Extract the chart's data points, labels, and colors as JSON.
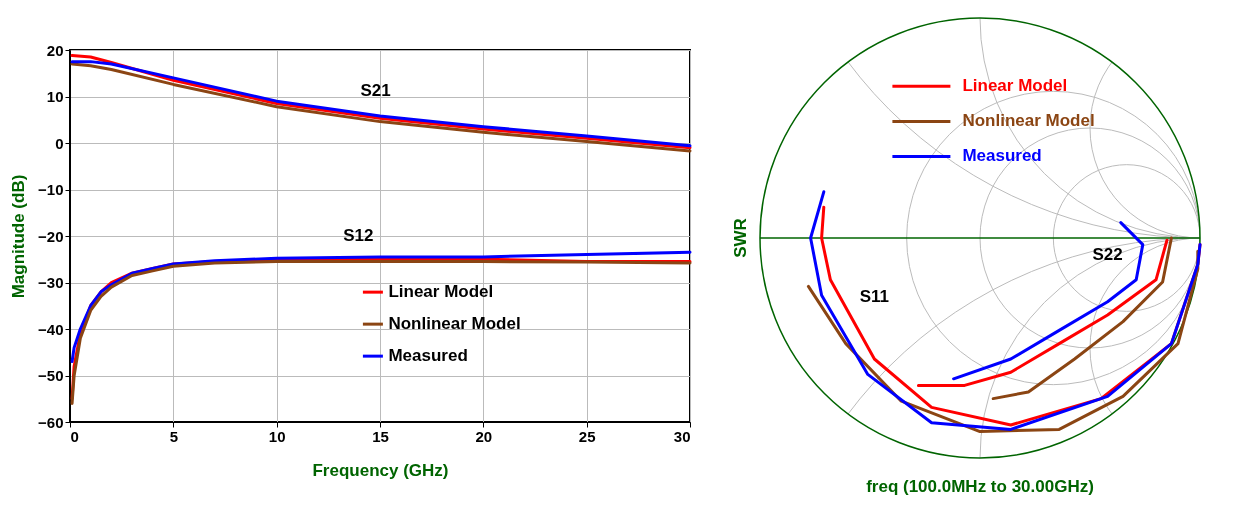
{
  "chart_data": [
    {
      "type": "line",
      "xlabel": "Frequency (GHz)",
      "ylabel": "Magnitude (dB)",
      "xlim": [
        0,
        30
      ],
      "ylim": [
        -60,
        20
      ],
      "xticks": [
        0,
        5,
        10,
        15,
        20,
        25,
        30
      ],
      "yticks": [
        -60,
        -50,
        -40,
        -30,
        -20,
        -10,
        0,
        10,
        20
      ],
      "grid": true,
      "legend": "bottom right",
      "annotations": [
        "S21",
        "S12"
      ],
      "series": [
        {
          "name": "Linear Model",
          "color": "#ff0000",
          "x": [
            0.1,
            1,
            2,
            5,
            10,
            15,
            20,
            25,
            30
          ],
          "values": [
            18.8,
            18.5,
            17.3,
            13.5,
            8.5,
            5.3,
            3,
            1,
            -1
          ]
        },
        {
          "name": "Nonlinear Model",
          "color": "#8b4513",
          "x": [
            0.1,
            1,
            2,
            5,
            10,
            15,
            20,
            25,
            30
          ],
          "values": [
            17,
            16.6,
            15.8,
            12.6,
            7.8,
            4.6,
            2.3,
            0.3,
            -1.7
          ]
        },
        {
          "name": "Measured",
          "color": "#0000ff",
          "x": [
            0.1,
            1,
            2,
            5,
            10,
            15,
            20,
            25,
            30
          ],
          "values": [
            17.5,
            17.5,
            17,
            14,
            9,
            5.8,
            3.5,
            1.5,
            -0.6
          ]
        },
        {
          "color": "#ff0000",
          "x": [
            0.1,
            0.2,
            0.5,
            1,
            1.5,
            2,
            3,
            4,
            5,
            7,
            10,
            20,
            25,
            30
          ],
          "values": [
            -55,
            -48,
            -41,
            -35,
            -32,
            -30,
            -28,
            -27,
            -26,
            -25.5,
            -25,
            -25,
            -25.5,
            -25.5
          ]
        },
        {
          "color": "#0000ff",
          "x": [
            0.1,
            0.2,
            0.5,
            1,
            1.5,
            2,
            3,
            4,
            5,
            7,
            10,
            15,
            20,
            25,
            30
          ],
          "values": [
            -47,
            -44,
            -40,
            -35,
            -32,
            -30.5,
            -28,
            -27,
            -26,
            -25.3,
            -24.8,
            -24.5,
            -24.5,
            -24,
            -23.5
          ]
        },
        {
          "color": "#8b4513",
          "x": [
            0.1,
            0.2,
            0.5,
            1,
            1.5,
            2,
            3,
            4,
            5,
            7,
            10,
            20,
            25,
            30
          ],
          "values": [
            -56,
            -50,
            -42,
            -36,
            -33,
            -31,
            -28.5,
            -27.5,
            -26.5,
            -25.8,
            -25.5,
            -25.5,
            -25.6,
            -25.8
          ]
        }
      ]
    },
    {
      "type": "other",
      "xlabel": "freq (100.0MHz to 30.00GHz)",
      "ylabel": "SWR",
      "annotations": [
        "Linear Model",
        "Nonlinear Model",
        "Measured",
        "S11",
        "S22"
      ]
    }
  ]
}
